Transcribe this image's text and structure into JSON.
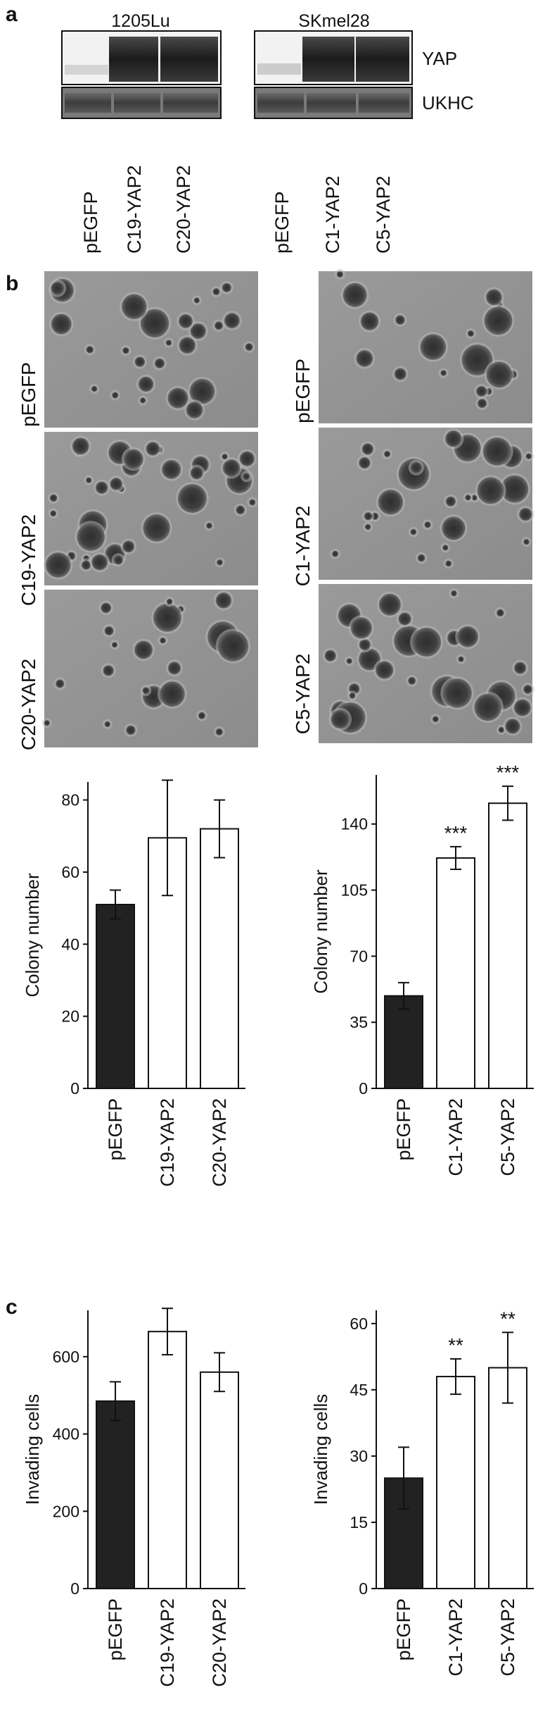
{
  "panel_labels": {
    "a": "a",
    "b": "b",
    "c": "c"
  },
  "panel_a": {
    "cell_lines": [
      "1205Lu",
      "SKmel28"
    ],
    "blot_labels": [
      "YAP",
      "UKHC"
    ],
    "lanes": [
      [
        "pEGFP",
        "C19-YAP2",
        "C20-YAP2"
      ],
      [
        "pEGFP",
        "C1-YAP2",
        "C5-YAP2"
      ]
    ]
  },
  "panel_b_images": {
    "left": [
      "pEGFP",
      "C19-YAP2",
      "C20-YAP2"
    ],
    "right": [
      "pEGFP",
      "C1-YAP2",
      "C5-YAP2"
    ]
  },
  "colors": {
    "control_bar": "#222222",
    "yap_bar": "#ffffff",
    "bar_outline": "#111111"
  },
  "chart_data": [
    {
      "type": "bar",
      "categories": [
        "pEGFP",
        "C19-YAP2",
        "C20-YAP2"
      ],
      "values": [
        51,
        69.5,
        72
      ],
      "errors": [
        4,
        16,
        8
      ],
      "significance": [
        "",
        "",
        ""
      ],
      "ylabel": "Colony number",
      "yticks": [
        0,
        20,
        40,
        60,
        80
      ],
      "ylim": [
        0,
        85
      ],
      "colors": [
        "#222222",
        "#ffffff",
        "#ffffff"
      ]
    },
    {
      "type": "bar",
      "categories": [
        "pEGFP",
        "C1-YAP2",
        "C5-YAP2"
      ],
      "values": [
        49,
        122,
        151
      ],
      "errors": [
        7,
        6,
        9
      ],
      "significance": [
        "",
        "***",
        "***"
      ],
      "ylabel": "Colony number",
      "yticks": [
        0,
        35,
        70,
        105,
        140
      ],
      "ylim": [
        0,
        166
      ],
      "colors": [
        "#222222",
        "#ffffff",
        "#ffffff"
      ]
    },
    {
      "type": "bar",
      "categories": [
        "pEGFP",
        "C19-YAP2",
        "C20-YAP2"
      ],
      "values": [
        485,
        665,
        560
      ],
      "errors": [
        50,
        60,
        50
      ],
      "significance": [
        "",
        "",
        ""
      ],
      "ylabel": "Invading cells",
      "yticks": [
        0,
        200,
        400,
        600
      ],
      "ylim": [
        0,
        720
      ],
      "colors": [
        "#222222",
        "#ffffff",
        "#ffffff"
      ]
    },
    {
      "type": "bar",
      "categories": [
        "pEGFP",
        "C1-YAP2",
        "C5-YAP2"
      ],
      "values": [
        25,
        48,
        50
      ],
      "errors": [
        7,
        4,
        8
      ],
      "significance": [
        "",
        "**",
        "**"
      ],
      "ylabel": "Invading cells",
      "yticks": [
        0,
        15,
        30,
        45,
        60
      ],
      "ylim": [
        0,
        63
      ],
      "colors": [
        "#222222",
        "#ffffff",
        "#ffffff"
      ]
    }
  ]
}
